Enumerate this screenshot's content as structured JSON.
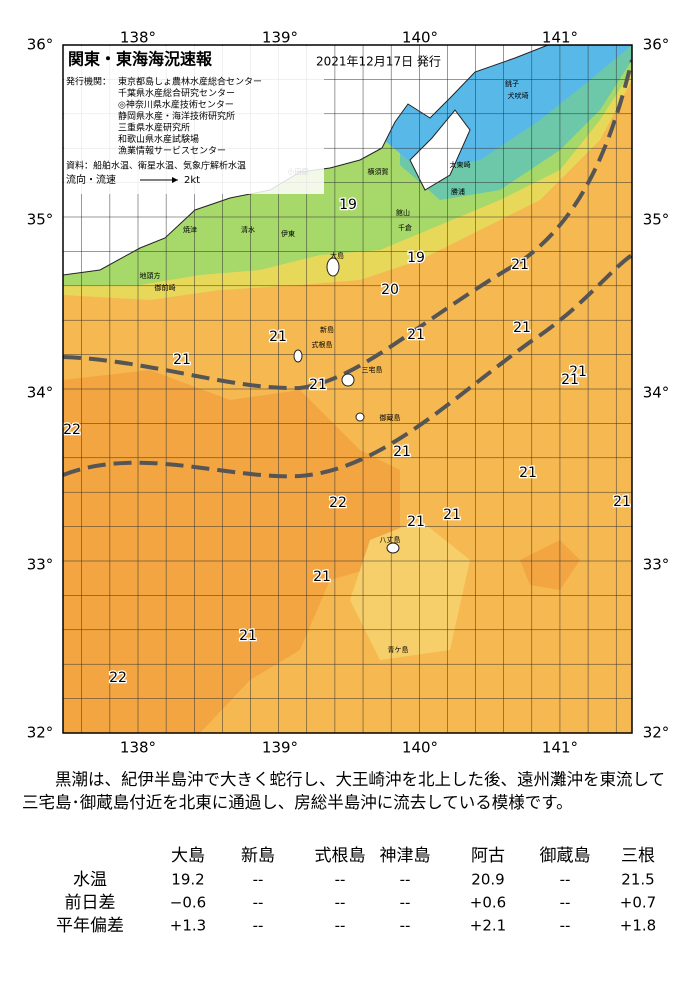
{
  "map": {
    "title": "関東・東海海況速報",
    "date": "2021年12月17日 発行",
    "agency_label": "発行機関：",
    "agencies": [
      "東京都島しょ農林水産総合センター",
      "千葉県水産総合研究センター",
      "◎神奈川県水産技術センター",
      "静岡県水産・海洋技術研究所",
      "三重県水産研究所",
      "和歌山県水産試験場",
      "漁業情報サービスセンター"
    ],
    "sources": "資料：船舶水温、衛星水温、気象庁解析水温",
    "legend_label": "流向・流速",
    "legend_speed": "2kt",
    "lat_labels": [
      "36°",
      "35°",
      "34°",
      "33°",
      "32°"
    ],
    "lon_labels": [
      "138°",
      "139°",
      "140°",
      "141°"
    ],
    "temp_labels": [
      "19",
      "19",
      "20",
      "21",
      "21",
      "21",
      "21",
      "21",
      "21",
      "21",
      "21",
      "21",
      "21",
      "21",
      "21",
      "21",
      "21",
      "21",
      "22",
      "22",
      "22"
    ],
    "places": [
      "大島",
      "新島",
      "式根島",
      "三宅島",
      "御蔵島",
      "八丈島",
      "青ケ島",
      "館山",
      "千倉",
      "勝浦",
      "太東崎",
      "犬吠埼",
      "小田原",
      "横須賀",
      "伊東",
      "清水",
      "焼津",
      "御前崎",
      "地頭方",
      "銚子"
    ]
  },
  "summary": "黒潮は、紀伊半島沖で大きく蛇行し、大王崎沖を北上した後、遠州灘沖を東流して三宅島･御蔵島付近を北東に通過し、房総半島沖に流去している模様です。",
  "table": {
    "columns": [
      "大島",
      "新島",
      "式根島",
      "神津島",
      "阿古",
      "御蔵島",
      "三根"
    ],
    "rows": [
      [
        "水温",
        "19.2",
        "--",
        "--",
        "--",
        "20.9",
        "--",
        "21.5"
      ],
      [
        "前日差",
        "−0.6",
        "--",
        "--",
        "--",
        "+0.6",
        "--",
        "+0.7"
      ],
      [
        "平年偏差",
        "+1.3",
        "--",
        "--",
        "--",
        "+2.1",
        "--",
        "+1.8"
      ]
    ]
  }
}
